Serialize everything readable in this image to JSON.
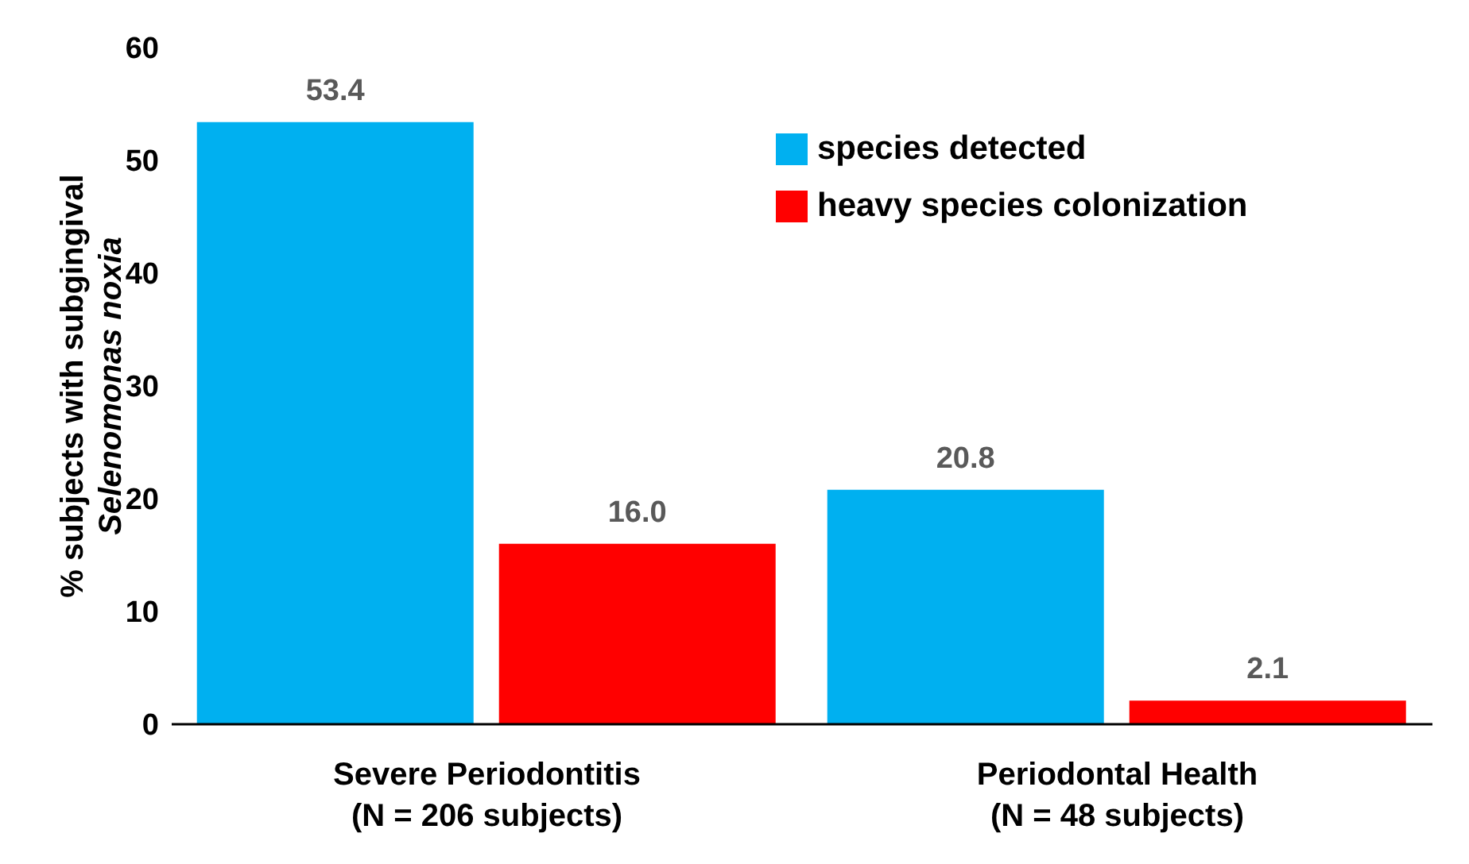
{
  "chart_data": {
    "type": "bar",
    "ylabel": "% subjects with subgingival Selenomonas noxia",
    "categories": [
      "Severe Periodontitis\n(N = 206 subjects)",
      "Periodontal Health\n(N = 48 subjects)"
    ],
    "series": [
      {
        "name": "species detected",
        "color": "#00b0f0",
        "values": [
          53.4,
          20.8
        ],
        "value_labels": [
          "53.4",
          "20.8"
        ]
      },
      {
        "name": "heavy species colonization",
        "color": "#ff0000",
        "values": [
          16.0,
          2.1
        ],
        "value_labels": [
          "16.0",
          "2.1"
        ]
      }
    ],
    "ylim": [
      0,
      60
    ],
    "yticks": [
      0,
      10,
      20,
      30,
      40,
      50,
      60
    ],
    "grid": false,
    "legend": "top right"
  }
}
